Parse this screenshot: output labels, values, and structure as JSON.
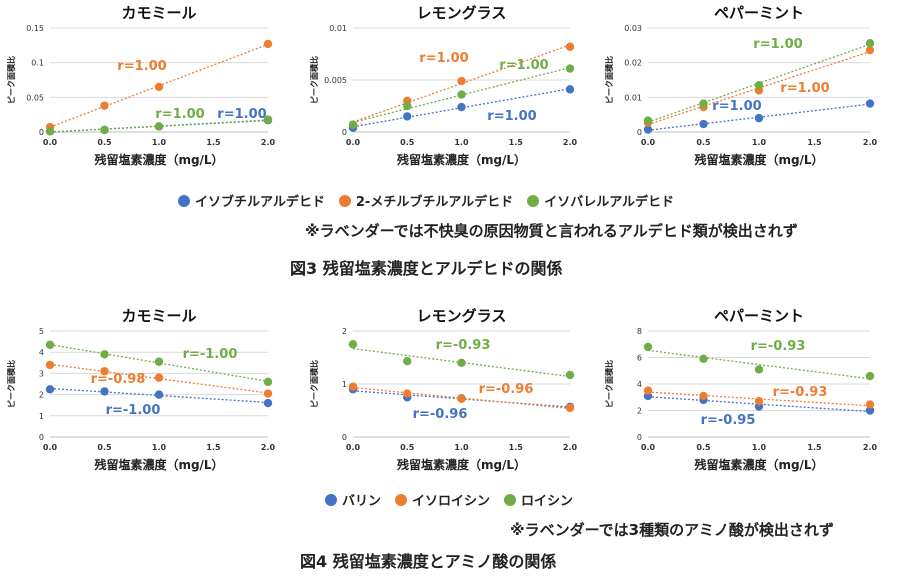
{
  "figure3": {
    "legend": [
      {
        "label": "イソブチルアルデヒド",
        "color": "#4472C4"
      },
      {
        "label": "2-メチルブチルアルデヒド",
        "color": "#ED7D31"
      },
      {
        "label": "イソバレルアルデヒド",
        "color": "#70AD47"
      }
    ],
    "note": "※ラベンダーでは不快臭の原因物質と言われるアルデヒド類が検出されず",
    "caption": "図3  残留塩素濃度とアルデヒドの関係"
  },
  "figure4": {
    "legend": [
      {
        "label": "バリン",
        "color": "#4472C4"
      },
      {
        "label": "イソロイシン",
        "color": "#ED7D31"
      },
      {
        "label": "ロイシン",
        "color": "#70AD47"
      }
    ],
    "note": "※ラベンダーでは3種類のアミノ酸が検出されず",
    "caption": "図4  残留塩素濃度とアミノ酸の関係"
  },
  "chart_data": [
    {
      "type": "scatter",
      "title": "カモミール",
      "xlabel": "残留塩素濃度（mg/L）",
      "ylabel": "ピーク面積比",
      "xlim": [
        0,
        2.0
      ],
      "ylim": [
        0,
        0.15
      ],
      "xticks": [
        "0.0",
        "0.5",
        "1.0",
        "1.5",
        "2.0"
      ],
      "yticks": [
        "0",
        "0.05",
        "0.1",
        "0.15"
      ],
      "x": [
        0,
        0.5,
        1.0,
        2.0
      ],
      "series": [
        {
          "name": "イソブチルアルデヒド",
          "color": "#4472C4",
          "values": [
            0.001,
            0.003,
            0.008,
            0.017
          ],
          "r": "r=1.00"
        },
        {
          "name": "2-メチルブチルアルデヒド",
          "color": "#ED7D31",
          "values": [
            0.007,
            0.038,
            0.065,
            0.127
          ],
          "r": "r=1.00"
        },
        {
          "name": "イソバレルアルデヒド",
          "color": "#70AD47",
          "values": [
            0.001,
            0.003,
            0.008,
            0.018
          ],
          "r": "r=1.00"
        }
      ]
    },
    {
      "type": "scatter",
      "title": "レモングラス",
      "xlabel": "残留塩素濃度（mg/L）",
      "ylabel": "ピーク面積比",
      "xlim": [
        0,
        2.0
      ],
      "ylim": [
        0,
        0.01
      ],
      "xticks": [
        "0.0",
        "0.5",
        "1.0",
        "1.5",
        "2.0"
      ],
      "yticks": [
        "0",
        "0.005",
        "0.01"
      ],
      "x": [
        0,
        0.5,
        1.0,
        2.0
      ],
      "series": [
        {
          "name": "イソブチルアルデヒド",
          "color": "#4472C4",
          "values": [
            0.0004,
            0.0015,
            0.0024,
            0.0041
          ],
          "r": "r=1.00"
        },
        {
          "name": "2-メチルブチルアルデヒド",
          "color": "#ED7D31",
          "values": [
            0.0007,
            0.003,
            0.0049,
            0.0082
          ],
          "r": "r=1.00"
        },
        {
          "name": "イソバレルアルデヒド",
          "color": "#70AD47",
          "values": [
            0.0007,
            0.0025,
            0.0036,
            0.0061
          ],
          "r": "r=1.00"
        }
      ]
    },
    {
      "type": "scatter",
      "title": "ペパーミント",
      "xlabel": "残留塩素濃度（mg/L）",
      "ylabel": "ピーク面積比",
      "xlim": [
        0,
        2.0
      ],
      "ylim": [
        0,
        0.03
      ],
      "xticks": [
        "0.0",
        "0.5",
        "1.0",
        "1.5",
        "2.0"
      ],
      "yticks": [
        "0",
        "0.01",
        "0.02",
        "0.03"
      ],
      "x": [
        0,
        0.5,
        1.0,
        2.0
      ],
      "series": [
        {
          "name": "イソブチルアルデヒド",
          "color": "#4472C4",
          "values": [
            0.0007,
            0.0023,
            0.004,
            0.0082
          ],
          "r": "r=1.00"
        },
        {
          "name": "2-メチルブチルアルデヒド",
          "color": "#ED7D31",
          "values": [
            0.0027,
            0.0072,
            0.012,
            0.0236
          ],
          "r": "r=1.00"
        },
        {
          "name": "イソバレルアルデヒド",
          "color": "#70AD47",
          "values": [
            0.0033,
            0.0082,
            0.0135,
            0.0256
          ],
          "r": "r=1.00"
        }
      ]
    },
    {
      "type": "scatter",
      "title": "カモミール",
      "xlabel": "残留塩素濃度（mg/L）",
      "ylabel": "ピーク面積比",
      "xlim": [
        0,
        2.0
      ],
      "ylim": [
        0,
        5
      ],
      "xticks": [
        "0.0",
        "0.5",
        "1.0",
        "1.5",
        "2.0"
      ],
      "yticks": [
        "0",
        "1",
        "2",
        "3",
        "4",
        "5"
      ],
      "x": [
        0,
        0.5,
        1.0,
        2.0
      ],
      "series": [
        {
          "name": "バリン",
          "color": "#4472C4",
          "values": [
            2.25,
            2.15,
            2.0,
            1.6
          ],
          "r": "r=-1.00"
        },
        {
          "name": "イソロイシン",
          "color": "#ED7D31",
          "values": [
            3.4,
            3.1,
            2.8,
            2.05
          ],
          "r": "r=-0.98"
        },
        {
          "name": "ロイシン",
          "color": "#70AD47",
          "values": [
            4.35,
            3.9,
            3.55,
            2.6
          ],
          "r": "r=-1.00"
        }
      ]
    },
    {
      "type": "scatter",
      "title": "レモングラス",
      "xlabel": "残留塩素濃度（mg/L）",
      "ylabel": "ピーク面積比",
      "xlim": [
        0,
        2.0
      ],
      "ylim": [
        0,
        2
      ],
      "xticks": [
        "0.0",
        "0.5",
        "1.0",
        "1.5",
        "2.0"
      ],
      "yticks": [
        "0",
        "1",
        "2"
      ],
      "x": [
        0,
        0.5,
        1.0,
        2.0
      ],
      "series": [
        {
          "name": "バリン",
          "color": "#4472C4",
          "values": [
            0.9,
            0.75,
            0.73,
            0.57
          ],
          "r": "r=-0.96"
        },
        {
          "name": "イソロイシン",
          "color": "#ED7D31",
          "values": [
            0.95,
            0.82,
            0.72,
            0.55
          ],
          "r": "r=-0.96"
        },
        {
          "name": "ロイシン",
          "color": "#70AD47",
          "values": [
            1.75,
            1.43,
            1.4,
            1.17
          ],
          "r": "r=-0.93"
        }
      ]
    },
    {
      "type": "scatter",
      "title": "ペパーミント",
      "xlabel": "残留塩素濃度（mg/L）",
      "ylabel": "ピーク面積比",
      "xlim": [
        0,
        2.0
      ],
      "ylim": [
        0,
        8
      ],
      "xticks": [
        "0.0",
        "0.5",
        "1.0",
        "1.5",
        "2.0"
      ],
      "yticks": [
        "0",
        "2",
        "4",
        "6",
        "8"
      ],
      "x": [
        0,
        0.5,
        1.0,
        2.0
      ],
      "series": [
        {
          "name": "バリン",
          "color": "#4472C4",
          "values": [
            3.1,
            2.8,
            2.3,
            2.0
          ],
          "r": "r=-0.95"
        },
        {
          "name": "イソロイシン",
          "color": "#ED7D31",
          "values": [
            3.5,
            3.1,
            2.7,
            2.45
          ],
          "r": "r=-0.93"
        },
        {
          "name": "ロイシン",
          "color": "#70AD47",
          "values": [
            6.8,
            5.9,
            5.1,
            4.6
          ],
          "r": "r=-0.93"
        }
      ]
    }
  ]
}
